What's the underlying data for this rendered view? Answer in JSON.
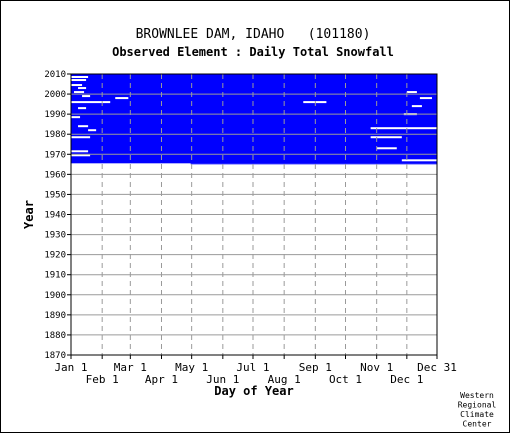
{
  "chart_data": {
    "type": "heatmap",
    "title": "BROWNLEE DAM, IDAHO   (101180)",
    "subtitle": "Observed Element : Daily Total Snowfall",
    "xlabel": "Day of Year",
    "ylabel": "Year",
    "ylim": [
      1870,
      2010
    ],
    "xlim": [
      1,
      365
    ],
    "y_ticks": [
      1870,
      1880,
      1890,
      1900,
      1910,
      1920,
      1930,
      1940,
      1950,
      1960,
      1970,
      1980,
      1990,
      2000,
      2010
    ],
    "x_ticks_upper": [
      {
        "label": "Jan 1",
        "day": 1
      },
      {
        "label": "Mar 1",
        "day": 60
      },
      {
        "label": "May 1",
        "day": 121
      },
      {
        "label": "Jul 1",
        "day": 182
      },
      {
        "label": "Sep 1",
        "day": 244
      },
      {
        "label": "Nov 1",
        "day": 305
      },
      {
        "label": "Dec 31",
        "day": 365
      }
    ],
    "x_ticks_lower": [
      {
        "label": "Feb 1",
        "day": 32
      },
      {
        "label": "Apr 1",
        "day": 91
      },
      {
        "label": "Jun 1",
        "day": 152
      },
      {
        "label": "Aug 1",
        "day": 213
      },
      {
        "label": "Oct 1",
        "day": 274
      },
      {
        "label": "Dec 1",
        "day": 335
      }
    ],
    "grid": true,
    "coverage_color": "#0000ff",
    "coverage": [
      {
        "start_year": 1965.5,
        "end_year": 2010,
        "start_day": 1,
        "end_day": 365
      },
      {
        "start_year": 1965.0,
        "end_year": 1965.5,
        "start_day": 120,
        "end_day": 365
      }
    ],
    "gaps": [
      {
        "year": 2008.5,
        "day_start": 1,
        "day_end": 18
      },
      {
        "year": 2007,
        "day_start": 1,
        "day_end": 16
      },
      {
        "year": 2004.5,
        "day_start": 1,
        "day_end": 12
      },
      {
        "year": 2003,
        "day_start": 8,
        "day_end": 16
      },
      {
        "year": 2001,
        "day_start": 4,
        "day_end": 14
      },
      {
        "year": 1999,
        "day_start": 12,
        "day_end": 20
      },
      {
        "year": 1998,
        "day_start": 45,
        "day_end": 58
      },
      {
        "year": 1996,
        "day_start": 1,
        "day_end": 40
      },
      {
        "year": 1996,
        "day_start": 232,
        "day_end": 255
      },
      {
        "year": 1993,
        "day_start": 8,
        "day_end": 16
      },
      {
        "year": 1988.5,
        "day_start": 1,
        "day_end": 10
      },
      {
        "year": 1984,
        "day_start": 8,
        "day_end": 18
      },
      {
        "year": 1983,
        "day_start": 299,
        "day_end": 365
      },
      {
        "year": 1982,
        "day_start": 18,
        "day_end": 26
      },
      {
        "year": 1978.5,
        "day_start": 1,
        "day_end": 20
      },
      {
        "year": 1978.5,
        "day_start": 299,
        "day_end": 330
      },
      {
        "year": 1973,
        "day_start": 305,
        "day_end": 325
      },
      {
        "year": 1971.5,
        "day_start": 1,
        "day_end": 18
      },
      {
        "year": 1969.5,
        "day_start": 1,
        "day_end": 20
      },
      {
        "year": 1967,
        "day_start": 330,
        "day_end": 365
      },
      {
        "year": 2001,
        "day_start": 335,
        "day_end": 345
      },
      {
        "year": 1998,
        "day_start": 348,
        "day_end": 360
      },
      {
        "year": 1994,
        "day_start": 340,
        "day_end": 350
      },
      {
        "year": 1990,
        "day_start": 332,
        "day_end": 345
      }
    ]
  },
  "credit": [
    "Western",
    "Regional",
    "Climate",
    "Center"
  ]
}
